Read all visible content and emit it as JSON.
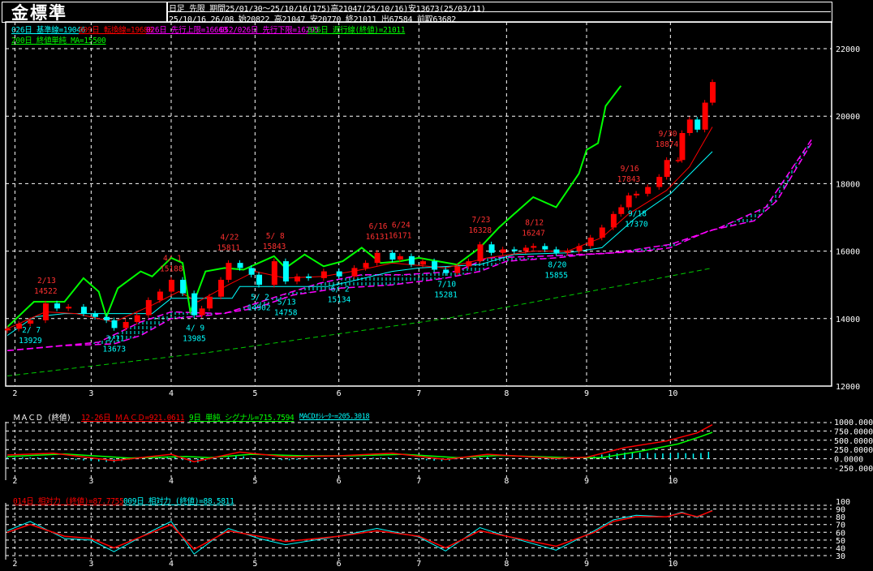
{
  "header": {
    "title": "金標準",
    "line1": "日足 先限 期間25/01/30～25/10/16(175)高21047(25/10/16)安13673(25/03/11)",
    "line2": "25/10/16 26/08 始20822 高21047 安20770 終21011 出67584 前取63682"
  },
  "legends": {
    "kijun": "026日 基準線=19046",
    "tenkan": "009日 転換線=19680",
    "span_upper": "026日 先行上限=16663",
    "span_lower": "052/026日 先行下限=16295",
    "chikou": "026日 遅行線(終値)=21011",
    "ma": "200日 終値単純 MA=15500",
    "macd_title": "ＭＡＣＤ (終値)",
    "macd": "12-26日 ＭＡＣＤ=921.0611",
    "signal": "9日 単純 シグナル=715.7594",
    "osc": "MACDｵｼﾚｰﾀｰ=205.3018",
    "rsi14": "014日 相対力 (終値)=87.7755",
    "rsi9": "009日 相対力 (終値)=88.5811"
  },
  "colors": {
    "up": "#ff0000",
    "down": "#00ffff",
    "kijun": "#00ffff",
    "tenkan": "#ff0000",
    "cloud_line": "#ff00ff",
    "cloud_fill": "#00ffff",
    "chikou": "#00ff00",
    "ma": "#00cc00",
    "macd": "#ff0000",
    "signal": "#00ff00",
    "osc": "#00ffff",
    "rsi14": "#ff0000",
    "rsi9": "#00ffff"
  },
  "chart_data": [
    {
      "type": "candlestick",
      "title": "金標準",
      "x_start": "01/30",
      "x_end": "10/16",
      "x_ticks": [
        "2",
        "3",
        "4",
        "5",
        "6",
        "7",
        "8",
        "9",
        "10"
      ],
      "y_ticks": [
        "22000",
        "20000",
        "18000",
        "16000",
        "14000",
        "12000"
      ],
      "ylim": [
        12000,
        22000
      ],
      "grid": true,
      "candles_close": [
        [
          "01/30",
          13700
        ],
        [
          "02/04",
          13850
        ],
        [
          "02/07",
          13950
        ],
        [
          "02/13",
          14450
        ],
        [
          "02/18",
          14300
        ],
        [
          "02/21",
          14350
        ],
        [
          "02/27",
          14150
        ],
        [
          "03/04",
          14050
        ],
        [
          "03/07",
          13950
        ],
        [
          "03/11",
          13720
        ],
        [
          "03/14",
          13900
        ],
        [
          "03/19",
          14100
        ],
        [
          "03/24",
          14550
        ],
        [
          "03/27",
          14800
        ],
        [
          "04/01",
          15150
        ],
        [
          "04/04",
          14750
        ],
        [
          "04/09",
          14100
        ],
        [
          "04/11",
          14300
        ],
        [
          "04/15",
          14650
        ],
        [
          "04/18",
          15150
        ],
        [
          "04/22",
          15650
        ],
        [
          "04/25",
          15500
        ],
        [
          "04/30",
          15300
        ],
        [
          "05/02",
          15000
        ],
        [
          "05/08",
          15700
        ],
        [
          "05/13",
          15100
        ],
        [
          "05/16",
          15250
        ],
        [
          "05/21",
          15200
        ],
        [
          "05/27",
          15400
        ],
        [
          "06/02",
          15250
        ],
        [
          "06/06",
          15500
        ],
        [
          "06/11",
          15650
        ],
        [
          "06/16",
          15950
        ],
        [
          "06/20",
          15750
        ],
        [
          "06/24",
          15850
        ],
        [
          "06/27",
          15600
        ],
        [
          "07/02",
          15700
        ],
        [
          "07/07",
          15450
        ],
        [
          "07/10",
          15350
        ],
        [
          "07/15",
          15550
        ],
        [
          "07/18",
          15700
        ],
        [
          "07/23",
          16200
        ],
        [
          "07/28",
          15950
        ],
        [
          "07/31",
          16050
        ],
        [
          "08/05",
          16000
        ],
        [
          "08/08",
          16100
        ],
        [
          "08/12",
          16150
        ],
        [
          "08/15",
          16050
        ],
        [
          "08/20",
          15950
        ],
        [
          "08/25",
          16000
        ],
        [
          "08/28",
          16150
        ],
        [
          "09/02",
          16400
        ],
        [
          "09/05",
          16700
        ],
        [
          "09/10",
          17100
        ],
        [
          "09/12",
          17300
        ],
        [
          "09/16",
          17650
        ],
        [
          "09/18",
          17700
        ],
        [
          "09/23",
          17900
        ],
        [
          "09/26",
          18200
        ],
        [
          "09/30",
          18700
        ],
        [
          "10/03",
          18700
        ],
        [
          "10/06",
          19500
        ],
        [
          "10/08",
          19900
        ],
        [
          "10/10",
          19600
        ],
        [
          "10/14",
          20400
        ],
        [
          "10/16",
          21011
        ]
      ],
      "kijun": [
        [
          "01/30",
          13500
        ],
        [
          "02/10",
          14050
        ],
        [
          "02/20",
          14150
        ],
        [
          "03/25",
          14150
        ],
        [
          "04/01",
          14600
        ],
        [
          "04/23",
          14600
        ],
        [
          "04/25",
          14950
        ],
        [
          "05/28",
          14950
        ],
        [
          "06/05",
          15100
        ],
        [
          "06/20",
          15400
        ],
        [
          "07/01",
          15500
        ],
        [
          "07/23",
          15600
        ],
        [
          "08/05",
          15900
        ],
        [
          "08/25",
          15950
        ],
        [
          "09/05",
          16100
        ],
        [
          "09/18",
          17000
        ],
        [
          "10/01",
          17700
        ],
        [
          "10/16",
          18950
        ]
      ],
      "tenkan": [
        [
          "01/30",
          13700
        ],
        [
          "02/13",
          14200
        ],
        [
          "02/25",
          14150
        ],
        [
          "03/11",
          13900
        ],
        [
          "03/25",
          14400
        ],
        [
          "04/03",
          14800
        ],
        [
          "04/10",
          14500
        ],
        [
          "04/22",
          15000
        ],
        [
          "05/01",
          15400
        ],
        [
          "05/13",
          15200
        ],
        [
          "05/27",
          15250
        ],
        [
          "06/10",
          15450
        ],
        [
          "06/20",
          15650
        ],
        [
          "07/10",
          15500
        ],
        [
          "07/25",
          15800
        ],
        [
          "08/12",
          16000
        ],
        [
          "08/25",
          16000
        ],
        [
          "09/05",
          16400
        ],
        [
          "09/16",
          17100
        ],
        [
          "09/30",
          17800
        ],
        [
          "10/08",
          18500
        ],
        [
          "10/16",
          19680
        ]
      ],
      "span_a": [
        [
          "01/30",
          13050
        ],
        [
          "02/20",
          13200
        ],
        [
          "03/11",
          13250
        ],
        [
          "03/20",
          13500
        ],
        [
          "04/01",
          14000
        ],
        [
          "04/15",
          14100
        ],
        [
          "05/01",
          14300
        ],
        [
          "05/15",
          14700
        ],
        [
          "06/01",
          14900
        ],
        [
          "06/20",
          15000
        ],
        [
          "07/10",
          15200
        ],
        [
          "07/23",
          15400
        ],
        [
          "08/01",
          15700
        ],
        [
          "08/20",
          15800
        ],
        [
          "09/01",
          15900
        ],
        [
          "09/20",
          16000
        ],
        [
          "10/01",
          16100
        ],
        [
          "10/15",
          16600
        ],
        [
          "10/31",
          16900
        ],
        [
          "11/10",
          17500
        ],
        [
          "11/21",
          19200
        ]
      ],
      "span_b": [
        [
          "01/30",
          13050
        ],
        [
          "03/05",
          13300
        ],
        [
          "03/20",
          13900
        ],
        [
          "04/01",
          14200
        ],
        [
          "04/20",
          14150
        ],
        [
          "05/10",
          14700
        ],
        [
          "05/25",
          15050
        ],
        [
          "06/10",
          15300
        ],
        [
          "06/25",
          15300
        ],
        [
          "07/15",
          15400
        ],
        [
          "07/25",
          15800
        ],
        [
          "08/15",
          15850
        ],
        [
          "09/10",
          15950
        ],
        [
          "10/01",
          16200
        ],
        [
          "10/20",
          16700
        ],
        [
          "11/05",
          17300
        ],
        [
          "11/21",
          19300
        ]
      ],
      "chikou": [
        [
          "01/30",
          13750
        ],
        [
          "02/10",
          14500
        ],
        [
          "02/20",
          14500
        ],
        [
          "02/27",
          15200
        ],
        [
          "03/05",
          14800
        ],
        [
          "03/07",
          14050
        ],
        [
          "03/12",
          14900
        ],
        [
          "03/20",
          15400
        ],
        [
          "03/25",
          15250
        ],
        [
          "04/01",
          15800
        ],
        [
          "04/04",
          15650
        ],
        [
          "04/08",
          14200
        ],
        [
          "04/14",
          15400
        ],
        [
          "04/21",
          15500
        ],
        [
          "04/28",
          15450
        ],
        [
          "05/08",
          15850
        ],
        [
          "05/13",
          15500
        ],
        [
          "05/20",
          15900
        ],
        [
          "05/27",
          15550
        ],
        [
          "06/03",
          15700
        ],
        [
          "06/10",
          16100
        ],
        [
          "06/17",
          15650
        ],
        [
          "06/24",
          15700
        ],
        [
          "07/01",
          15800
        ],
        [
          "07/08",
          15700
        ],
        [
          "07/15",
          15600
        ],
        [
          "07/23",
          16100
        ],
        [
          "07/30",
          16700
        ],
        [
          "08/05",
          17100
        ],
        [
          "08/12",
          17600
        ],
        [
          "08/20",
          17300
        ],
        [
          "08/28",
          18300
        ],
        [
          "09/01",
          19000
        ],
        [
          "09/04",
          19200
        ],
        [
          "09/08",
          20300
        ],
        [
          "09/12",
          20900
        ]
      ],
      "ma200": [
        [
          "01/30",
          12300
        ],
        [
          "04/15",
          13000
        ],
        [
          "07/10",
          14000
        ],
        [
          "09/15",
          15000
        ],
        [
          "10/16",
          15500
        ]
      ],
      "annotations": [
        {
          "date": "02/13",
          "label": "2/13",
          "value": "14522",
          "kind": "high"
        },
        {
          "date": "04/01",
          "label": "4/ 1",
          "value": "15188",
          "kind": "high"
        },
        {
          "date": "04/22",
          "label": "4/22",
          "value": "15811",
          "kind": "high"
        },
        {
          "date": "05/08",
          "label": "5/ 8",
          "value": "15843",
          "kind": "high"
        },
        {
          "date": "06/16",
          "label": "6/16",
          "value": "16131",
          "kind": "high"
        },
        {
          "date": "06/24",
          "label": "6/24",
          "value": "16171",
          "kind": "high"
        },
        {
          "date": "07/23",
          "label": "7/23",
          "value": "16328",
          "kind": "high"
        },
        {
          "date": "08/12",
          "label": "8/12",
          "value": "16247",
          "kind": "high"
        },
        {
          "date": "09/16",
          "label": "9/16",
          "value": "17843",
          "kind": "high"
        },
        {
          "date": "09/30",
          "label": "9/30",
          "value": "18874",
          "kind": "high"
        },
        {
          "date": "02/07",
          "label": "2/ 7",
          "value": "13929",
          "kind": "low"
        },
        {
          "date": "03/11",
          "label": "3/11",
          "value": "13673",
          "kind": "low"
        },
        {
          "date": "04/09",
          "label": "4/ 9",
          "value": "13985",
          "kind": "low"
        },
        {
          "date": "05/02",
          "label": "5/ 2",
          "value": "14902",
          "kind": "low"
        },
        {
          "date": "05/13",
          "label": "5/13",
          "value": "14758",
          "kind": "low"
        },
        {
          "date": "06/02",
          "label": "6/ 2",
          "value": "15134",
          "kind": "low"
        },
        {
          "date": "07/10",
          "label": "7/10",
          "value": "15281",
          "kind": "low"
        },
        {
          "date": "08/20",
          "label": "8/20",
          "value": "15855",
          "kind": "low"
        },
        {
          "date": "09/18",
          "label": "9/18",
          "value": "17370",
          "kind": "low"
        }
      ]
    },
    {
      "type": "line",
      "title": "ＭＡＣＤ (終値)",
      "y_ticks": [
        "1000.000",
        "750.0000",
        "500.0000",
        "250.0000",
        "0.0000",
        "-250.000"
      ],
      "ylim": [
        -250,
        1000
      ],
      "macd": [
        [
          "01/30",
          100
        ],
        [
          "02/15",
          150
        ],
        [
          "03/11",
          -50
        ],
        [
          "04/01",
          120
        ],
        [
          "04/09",
          -80
        ],
        [
          "04/25",
          180
        ],
        [
          "05/13",
          50
        ],
        [
          "06/01",
          80
        ],
        [
          "06/20",
          150
        ],
        [
          "07/10",
          -20
        ],
        [
          "07/25",
          120
        ],
        [
          "08/20",
          10
        ],
        [
          "09/01",
          40
        ],
        [
          "09/15",
          300
        ],
        [
          "09/30",
          480
        ],
        [
          "10/10",
          700
        ],
        [
          "10/16",
          921
        ]
      ],
      "signal": [
        [
          "01/30",
          60
        ],
        [
          "02/20",
          130
        ],
        [
          "03/15",
          20
        ],
        [
          "04/05",
          60
        ],
        [
          "04/15",
          30
        ],
        [
          "04/30",
          120
        ],
        [
          "05/20",
          80
        ],
        [
          "06/05",
          80
        ],
        [
          "06/25",
          120
        ],
        [
          "07/15",
          30
        ],
        [
          "07/30",
          90
        ],
        [
          "08/25",
          30
        ],
        [
          "09/05",
          30
        ],
        [
          "09/20",
          220
        ],
        [
          "10/03",
          400
        ],
        [
          "10/12",
          600
        ],
        [
          "10/16",
          716
        ]
      ]
    },
    {
      "type": "line",
      "title": "相対力",
      "y_ticks": [
        "100",
        "90",
        "80",
        "70",
        "60",
        "50",
        "40",
        "30"
      ],
      "ylim": [
        30,
        100
      ],
      "rsi14": [
        [
          "01/30",
          60
        ],
        [
          "02/07",
          70
        ],
        [
          "02/20",
          55
        ],
        [
          "03/03",
          52
        ],
        [
          "03/11",
          40
        ],
        [
          "03/25",
          60
        ],
        [
          "04/01",
          70
        ],
        [
          "04/09",
          38
        ],
        [
          "04/22",
          62
        ],
        [
          "05/02",
          55
        ],
        [
          "05/13",
          48
        ],
        [
          "06/02",
          55
        ],
        [
          "06/16",
          62
        ],
        [
          "07/01",
          55
        ],
        [
          "07/10",
          40
        ],
        [
          "07/23",
          62
        ],
        [
          "08/01",
          55
        ],
        [
          "08/20",
          42
        ],
        [
          "09/03",
          60
        ],
        [
          "09/10",
          74
        ],
        [
          "09/18",
          80
        ],
        [
          "09/30",
          80
        ],
        [
          "10/06",
          85
        ],
        [
          "10/10",
          80
        ],
        [
          "10/16",
          87.8
        ]
      ],
      "rsi9": [
        [
          "01/30",
          62
        ],
        [
          "02/07",
          74
        ],
        [
          "02/20",
          52
        ],
        [
          "03/03",
          50
        ],
        [
          "03/11",
          35
        ],
        [
          "03/25",
          62
        ],
        [
          "04/01",
          74
        ],
        [
          "04/09",
          32
        ],
        [
          "04/22",
          65
        ],
        [
          "05/02",
          52
        ],
        [
          "05/13",
          44
        ],
        [
          "06/02",
          55
        ],
        [
          "06/16",
          65
        ],
        [
          "07/01",
          54
        ],
        [
          "07/10",
          36
        ],
        [
          "07/23",
          66
        ],
        [
          "08/01",
          55
        ],
        [
          "08/20",
          37
        ],
        [
          "09/03",
          62
        ],
        [
          "09/10",
          76
        ],
        [
          "09/18",
          82
        ],
        [
          "09/30",
          80
        ],
        [
          "10/06",
          86
        ],
        [
          "10/10",
          79
        ],
        [
          "10/16",
          88.6
        ]
      ]
    }
  ]
}
